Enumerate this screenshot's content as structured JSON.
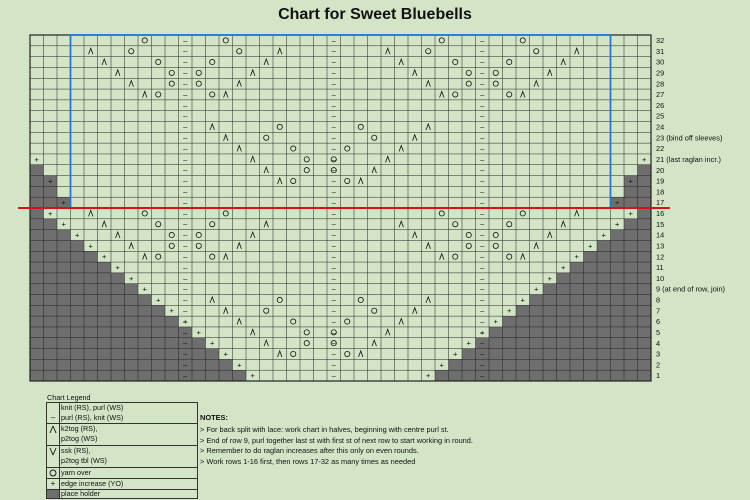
{
  "title": "Chart for Sweet Bluebells",
  "colors": {
    "background": "#d3e5c6",
    "cell": "#d3e5c6",
    "grid": "#222222",
    "placeholder": "#6e6e6e",
    "blue_outline": "#1e78d8",
    "red_line": "#e01010"
  },
  "chart": {
    "columns": 46,
    "row_labels": [
      {
        "row": 32,
        "text": "32"
      },
      {
        "row": 31,
        "text": "31"
      },
      {
        "row": 30,
        "text": "30"
      },
      {
        "row": 29,
        "text": "29"
      },
      {
        "row": 28,
        "text": "28"
      },
      {
        "row": 27,
        "text": "27"
      },
      {
        "row": 26,
        "text": "26"
      },
      {
        "row": 25,
        "text": "25"
      },
      {
        "row": 24,
        "text": "24"
      },
      {
        "row": 23,
        "text": "23 (bind off sleeves)"
      },
      {
        "row": 22,
        "text": "22"
      },
      {
        "row": 21,
        "text": "21 (last raglan incr.)"
      },
      {
        "row": 20,
        "text": "20"
      },
      {
        "row": 19,
        "text": "19"
      },
      {
        "row": 18,
        "text": "18"
      },
      {
        "row": 17,
        "text": "17"
      },
      {
        "row": 16,
        "text": "16"
      },
      {
        "row": 15,
        "text": "15"
      },
      {
        "row": 14,
        "text": "14"
      },
      {
        "row": 13,
        "text": "13"
      },
      {
        "row": 12,
        "text": "12"
      },
      {
        "row": 11,
        "text": "11"
      },
      {
        "row": 10,
        "text": "10"
      },
      {
        "row": 9,
        "text": "9 (at end of row, join)"
      },
      {
        "row": 8,
        "text": "8"
      },
      {
        "row": 7,
        "text": "7"
      },
      {
        "row": 6,
        "text": "6"
      },
      {
        "row": 5,
        "text": "5"
      },
      {
        "row": 4,
        "text": "4"
      },
      {
        "row": 3,
        "text": "3"
      },
      {
        "row": 2,
        "text": "2"
      },
      {
        "row": 1,
        "text": "1"
      }
    ]
  },
  "legend": {
    "title": "Chart Legend",
    "items": [
      {
        "symbol": "",
        "text": "knit (RS), purl (WS)"
      },
      {
        "symbol": "–",
        "text": "purl (RS), knit (WS)"
      },
      {
        "symbol": "⋏",
        "text": "k2tog (RS),",
        "text2": "p2tog (WS)"
      },
      {
        "symbol": "⋏",
        "text": "ssk (RS),",
        "text2": "p2tog tbl (WS)"
      },
      {
        "symbol": "O",
        "text": "yarn over"
      },
      {
        "symbol": "+",
        "text": "edge increase (YO)"
      },
      {
        "symbol": "",
        "text": "place holder"
      }
    ]
  },
  "notes": {
    "heading": "NOTES:",
    "lines": [
      "> For back split with lace: work chart in halves, beginning with centre purl st.",
      "> End of row 9, purl together last st with first st of next row to start working in round.",
      "> Remember to do raglan increases after this only on even rounds.",
      "> Work rows 1-16 first, then rows 17-32 as many times as needed"
    ]
  }
}
